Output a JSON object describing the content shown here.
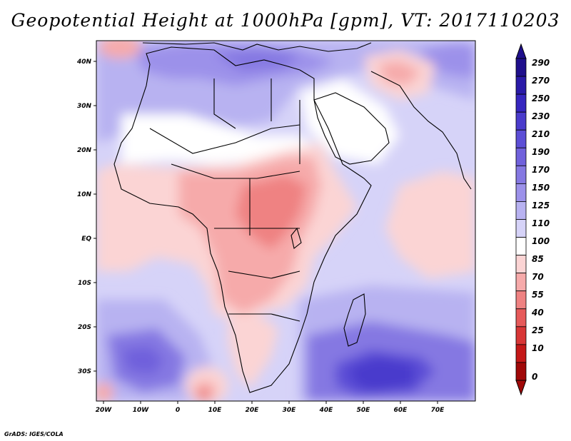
{
  "title": "Geopotential Height at 1000hPa [gpm], VT: 2017110203",
  "credit": "GrADS: IGES/COLA",
  "map": {
    "lon_ticks": [
      "20W",
      "10W",
      "0",
      "10E",
      "20E",
      "30E",
      "40E",
      "50E",
      "60E",
      "70E"
    ],
    "lat_ticks": [
      "40N",
      "30N",
      "20N",
      "10N",
      "EQ",
      "10S",
      "20S",
      "30S"
    ],
    "lon_range": [
      -22,
      80
    ],
    "lat_range": [
      -37,
      45
    ]
  },
  "colorbar": {
    "labels": [
      "290",
      "270",
      "250",
      "230",
      "210",
      "190",
      "170",
      "150",
      "125",
      "110",
      "100",
      "85",
      "70",
      "55",
      "40",
      "25",
      "10",
      "0"
    ],
    "colors_top_to_bottom": [
      "#1f0f8c",
      "#2a1aa8",
      "#3626bf",
      "#4a3bcc",
      "#5c4ed6",
      "#7061dc",
      "#8578e2",
      "#9c91ea",
      "#b8b2f1",
      "#d6d3f8",
      "#ffffff",
      "#fbd4d4",
      "#f6aaaa",
      "#ef8282",
      "#e65a5a",
      "#d83636",
      "#c41818",
      "#a00808"
    ]
  }
}
